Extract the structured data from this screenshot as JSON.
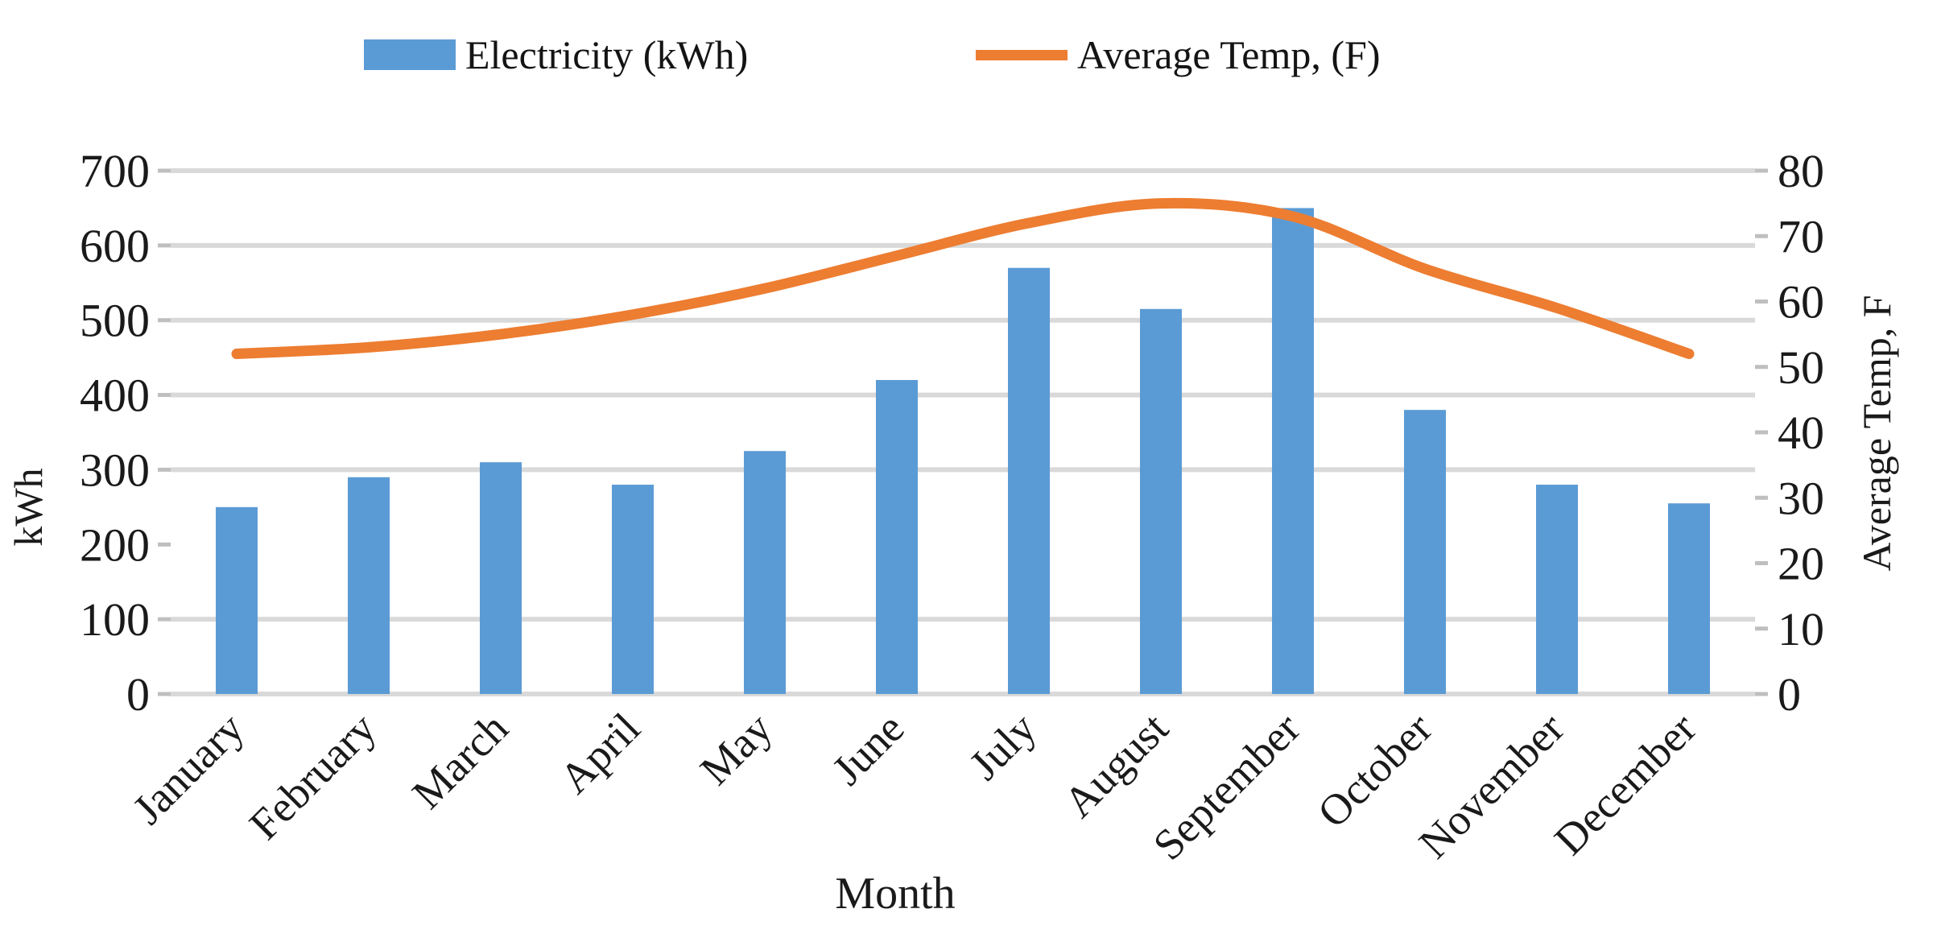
{
  "legend": {
    "items": [
      {
        "label": "Electricity (kWh)",
        "color": "#5B9BD5",
        "marker": "bar-swatch"
      },
      {
        "label": "Average Temp, (F)",
        "color": "#ED7D31",
        "marker": "line-swatch"
      }
    ]
  },
  "chart_data": {
    "type": "combo-bar-line",
    "categories": [
      "January",
      "February",
      "March",
      "April",
      "May",
      "June",
      "July",
      "August",
      "September",
      "October",
      "November",
      "December"
    ],
    "series": [
      {
        "name": "Electricity (kWh)",
        "type": "bar",
        "axis": "left",
        "color": "#5B9BD5",
        "values": [
          250,
          290,
          310,
          280,
          325,
          420,
          570,
          515,
          650,
          380,
          280,
          255
        ]
      },
      {
        "name": "Average Temp, (F)",
        "type": "line",
        "axis": "right",
        "color": "#ED7D31",
        "values": [
          52,
          53,
          55,
          58,
          62,
          67,
          72,
          75,
          73,
          65,
          59,
          52
        ]
      }
    ],
    "xlabel": "Month",
    "left_axis": {
      "title": "kWh",
      "min": 0,
      "max": 700,
      "tick_labels": [
        "700",
        "600",
        "500",
        "400",
        "300",
        "200",
        "100",
        "0"
      ],
      "tick_values": [
        700,
        600,
        500,
        400,
        300,
        200,
        100,
        0
      ]
    },
    "right_axis": {
      "title": "Average Temp, F",
      "min": 0,
      "max": 80,
      "tick_labels": [
        "80",
        "70",
        "60",
        "50",
        "40",
        "30",
        "20",
        "10",
        "0"
      ],
      "tick_values": [
        80,
        70,
        60,
        50,
        40,
        30,
        20,
        10,
        0
      ]
    },
    "gridline_values": [
      700,
      600,
      500,
      400,
      300,
      100,
      0
    ],
    "grid": true,
    "legend_position": "top",
    "line_smoothed": true,
    "colors": {
      "bar": "#5B9BD5",
      "line": "#ED7D31",
      "gridline": "#D9D9D9",
      "tick": "#bfbfbf",
      "text": "#1a1a1a"
    }
  }
}
